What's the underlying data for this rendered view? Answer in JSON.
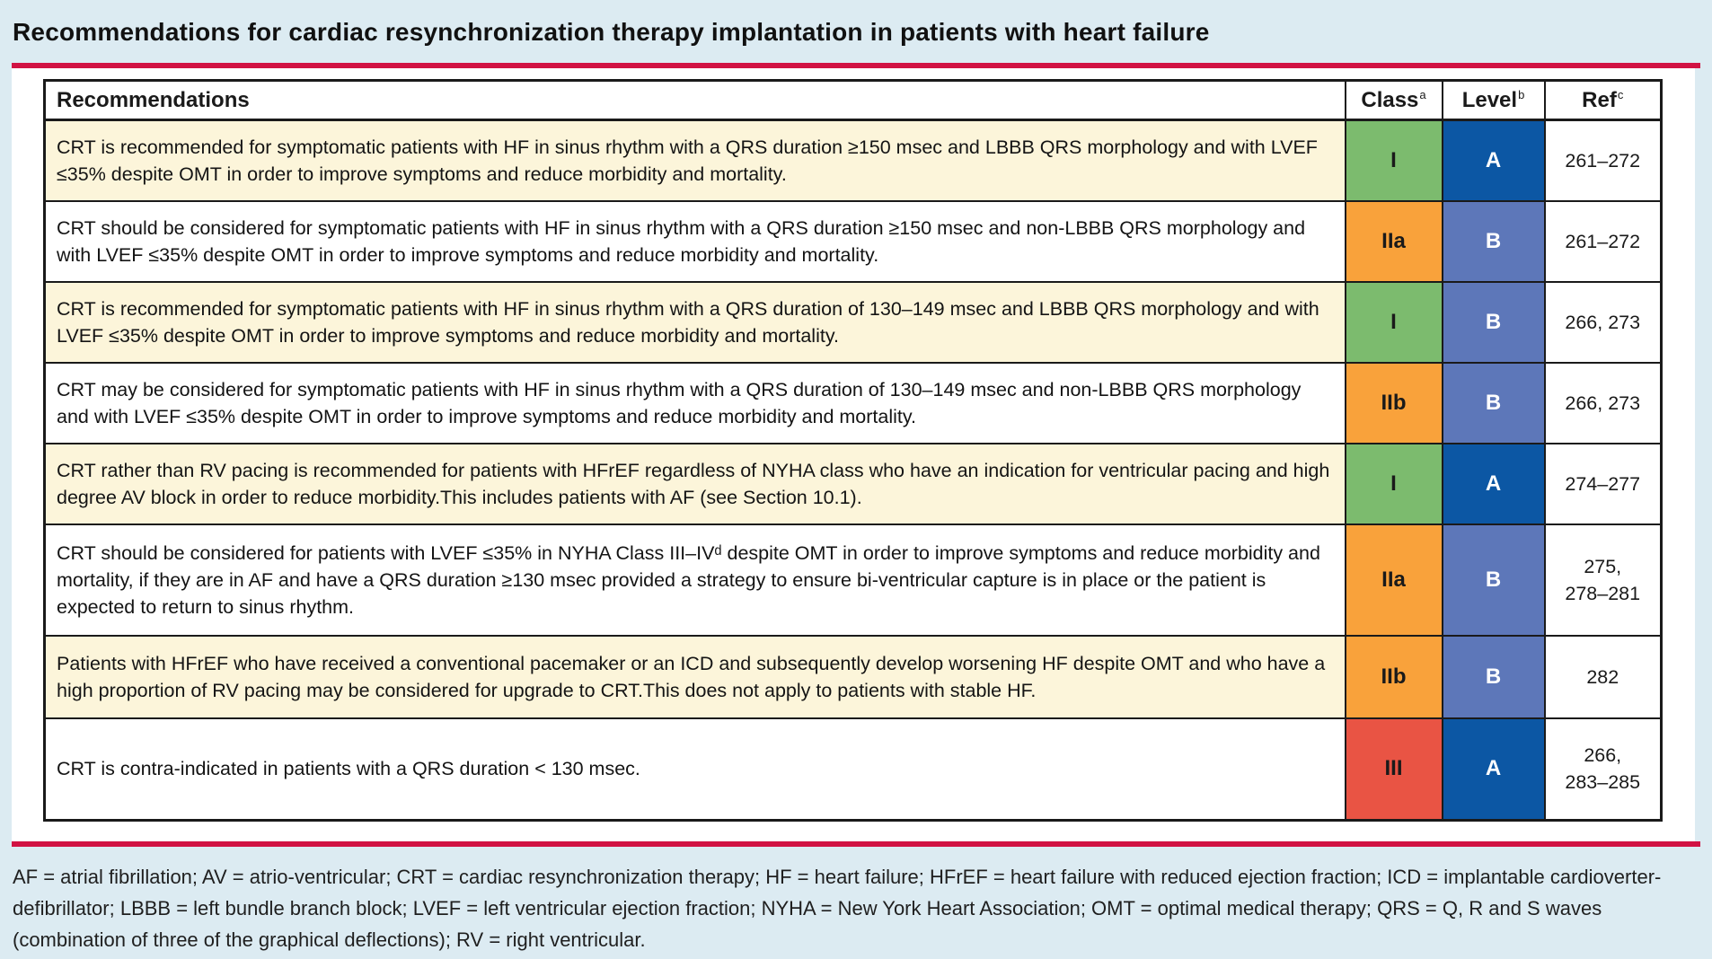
{
  "title": "Recommendations for cardiac resynchronization therapy implantation in patients with heart failure",
  "accent": {
    "rule_color": "#D11243",
    "page_bg": "#DCEBF2",
    "row_highlight": "#FCF5DA",
    "class_colors": {
      "I": "#7CBB6E",
      "IIa": "#F9A23B",
      "IIb": "#F9A23B",
      "III": "#E95444"
    },
    "level_colors": {
      "A": "#0C57A4",
      "B": "#5D77B9"
    }
  },
  "table": {
    "headers": {
      "recommendations": "Recommendations",
      "class_label": "Class",
      "class_sup": "a",
      "level_label": "Level",
      "level_sup": "b",
      "ref_label": "Ref",
      "ref_sup": "c"
    },
    "rows": [
      {
        "text": "CRT is recommended for symptomatic patients with HF in sinus rhythm with a QRS duration ≥150 msec and LBBB QRS morphology and with LVEF ≤35% despite OMT in order to improve symptoms and reduce morbidity and mortality.",
        "class": "I",
        "level": "A",
        "ref": "261–272",
        "row_bg": "#FCF5DA",
        "class_bg": "#7CBB6E",
        "level_bg": "#0C57A4"
      },
      {
        "text": "CRT should be considered for symptomatic patients with HF in sinus rhythm with a QRS duration ≥150 msec and non-LBBB QRS morphology and with LVEF ≤35% despite OMT in order to improve symptoms and reduce morbidity and mortality.",
        "class": "IIa",
        "level": "B",
        "ref": "261–272",
        "row_bg": "#FFFFFF",
        "class_bg": "#F9A23B",
        "level_bg": "#5D77B9"
      },
      {
        "text": "CRT is recommended for symptomatic patients with HF in sinus rhythm with a QRS duration of 130–149 msec and LBBB QRS morphology and with LVEF ≤35% despite OMT in order to improve symptoms and reduce morbidity and mortality.",
        "class": "I",
        "level": "B",
        "ref": "266, 273",
        "row_bg": "#FCF5DA",
        "class_bg": "#7CBB6E",
        "level_bg": "#5D77B9"
      },
      {
        "text": "CRT may be considered for symptomatic patients with HF in sinus rhythm with a QRS duration of 130–149 msec and non-LBBB QRS morphology and with LVEF ≤35% despite OMT in order to improve symptoms and reduce morbidity and mortality.",
        "class": "IIb",
        "level": "B",
        "ref": "266, 273",
        "row_bg": "#FFFFFF",
        "class_bg": "#F9A23B",
        "level_bg": "#5D77B9"
      },
      {
        "text": "CRT rather than RV pacing is recommended for patients with HFrEF regardless of NYHA class who have an indication for ventricular pacing and high degree AV block in order to reduce morbidity.This includes patients with AF (see Section 10.1).",
        "class": "I",
        "level": "A",
        "ref": "274–277",
        "row_bg": "#FCF5DA",
        "class_bg": "#7CBB6E",
        "level_bg": "#0C57A4"
      },
      {
        "text": "CRT should be considered for patients with LVEF ≤35% in NYHA Class III–IVᵈ despite OMT in order to improve symptoms and reduce morbidity and mortality, if they are in AF and have a QRS duration ≥130 msec provided a strategy to ensure bi-ventricular capture is in place or the patient is expected to return to sinus rhythm.",
        "class": "IIa",
        "level": "B",
        "ref": "275,\n278–281",
        "row_bg": "#FFFFFF",
        "class_bg": "#F9A23B",
        "level_bg": "#5D77B9"
      },
      {
        "text": "Patients with HFrEF who have received a conventional pacemaker or an ICD and subsequently develop worsening HF despite OMT and who have a high proportion of RV pacing may be considered for upgrade to CRT.This does not apply to patients with stable HF.",
        "class": "IIb",
        "level": "B",
        "ref": "282",
        "row_bg": "#FCF5DA",
        "class_bg": "#F9A23B",
        "level_bg": "#5D77B9"
      },
      {
        "text": "CRT is contra-indicated in patients with a QRS duration < 130 msec.",
        "class": "III",
        "level": "A",
        "ref": "266,\n283–285",
        "row_bg": "#FFFFFF",
        "class_bg": "#E95444",
        "level_bg": "#0C57A4"
      }
    ]
  },
  "footnote": "AF = atrial fibrillation; AV = atrio-ventricular; CRT = cardiac resynchronization therapy; HF = heart failure; HFrEF = heart failure with reduced ejection fraction; ICD = implantable cardioverter-defibrillator; LBBB = left bundle branch block; LVEF = left ventricular ejection fraction; NYHA = New York Heart Association; OMT = optimal medical therapy; QRS = Q, R and S waves (combination of three of the graphical deflections); RV = right ventricular."
}
